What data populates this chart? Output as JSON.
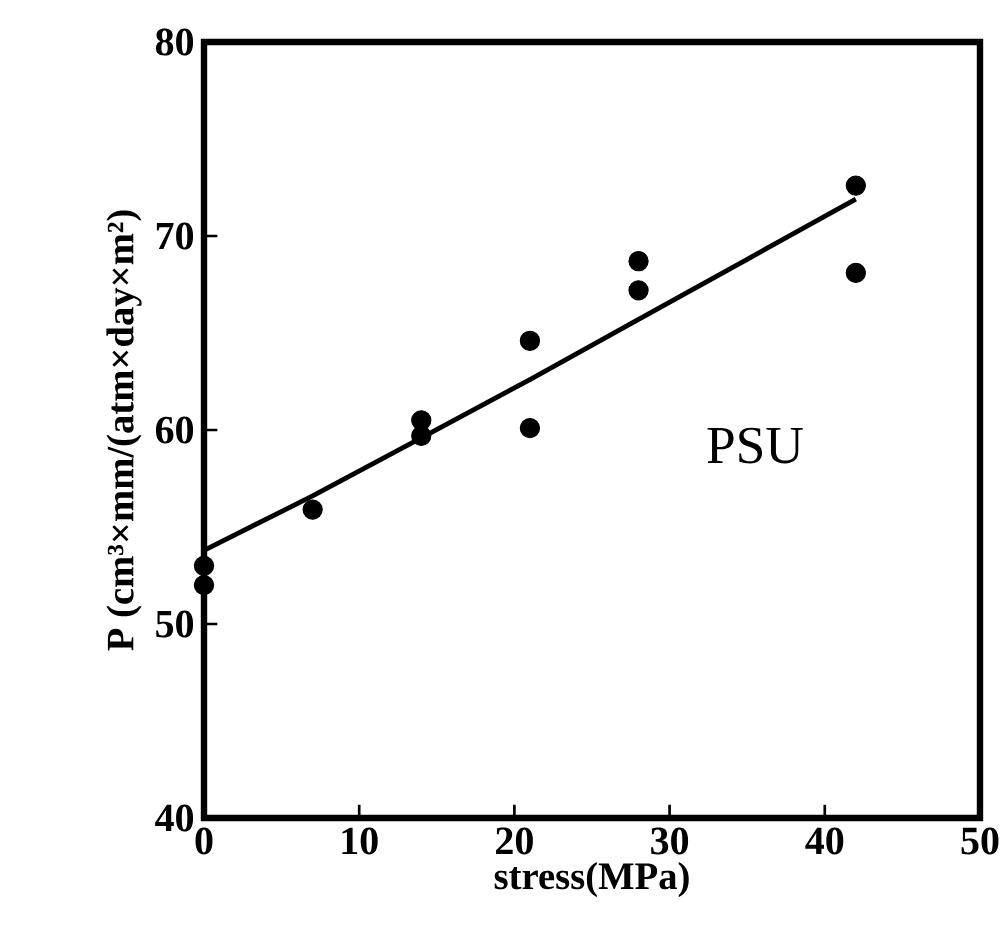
{
  "chart_data": {
    "type": "scatter",
    "xlabel": "stress(MPa)",
    "ylabel": "P (cm³×mm/(atm×day×m²)",
    "xlim": [
      0,
      50
    ],
    "ylim": [
      40,
      80
    ],
    "xticks": [
      0,
      10,
      20,
      30,
      40,
      50
    ],
    "yticks": [
      40,
      50,
      60,
      70,
      80
    ],
    "grid": false,
    "marker": "circle",
    "annotations": [
      "PSU"
    ],
    "series": [
      {
        "color": "#000000",
        "x": [
          0,
          0,
          7,
          14,
          14,
          21,
          21,
          28,
          28,
          42,
          42
        ],
        "values": [
          53.0,
          52.0,
          55.9,
          60.5,
          59.7,
          64.6,
          60.1,
          68.7,
          67.2,
          72.6,
          68.1
        ]
      },
      {
        "type": "line",
        "color": "#000000",
        "marker": "none",
        "line_style": "solid",
        "x": [
          0,
          7,
          14,
          21,
          28,
          35,
          42
        ],
        "values": [
          53.8,
          56.6,
          59.6,
          62.6,
          65.7,
          68.8,
          71.9
        ]
      }
    ]
  }
}
